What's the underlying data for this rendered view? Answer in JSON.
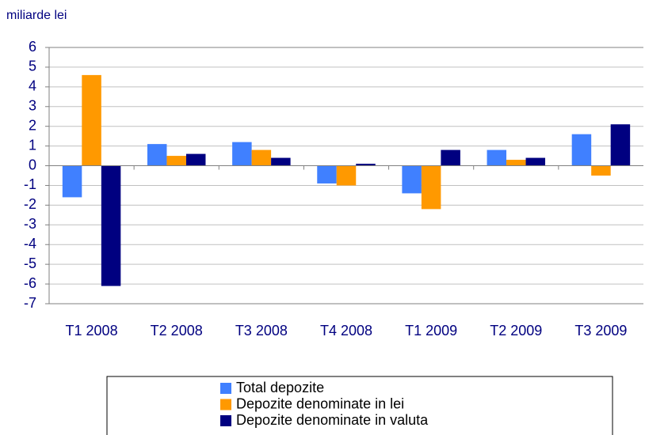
{
  "chart_data": {
    "type": "bar",
    "y_label": "miliarde lei",
    "categories": [
      "T1 2008",
      "T2 2008",
      "T3 2008",
      "T4 2008",
      "T1 2009",
      "T2 2009",
      "T3 2009"
    ],
    "series": [
      {
        "name": "Total depozite",
        "color": "#4080ff",
        "values": [
          -1.6,
          1.1,
          1.2,
          -0.9,
          -1.4,
          0.8,
          1.6
        ]
      },
      {
        "name": "Depozite denominate in lei",
        "color": "#ff9900",
        "values": [
          4.6,
          0.5,
          0.8,
          -1.0,
          -2.2,
          0.3,
          -0.5
        ]
      },
      {
        "name": "Depozite denominate in valuta",
        "color": "#000080",
        "values": [
          -6.1,
          0.6,
          0.4,
          0.1,
          0.8,
          0.4,
          2.1
        ]
      }
    ],
    "ylim": [
      -7,
      6
    ],
    "yticks": [
      -7,
      -6,
      -5,
      -4,
      -3,
      -2,
      -1,
      0,
      1,
      2,
      3,
      4,
      5,
      6
    ],
    "grid": true
  }
}
